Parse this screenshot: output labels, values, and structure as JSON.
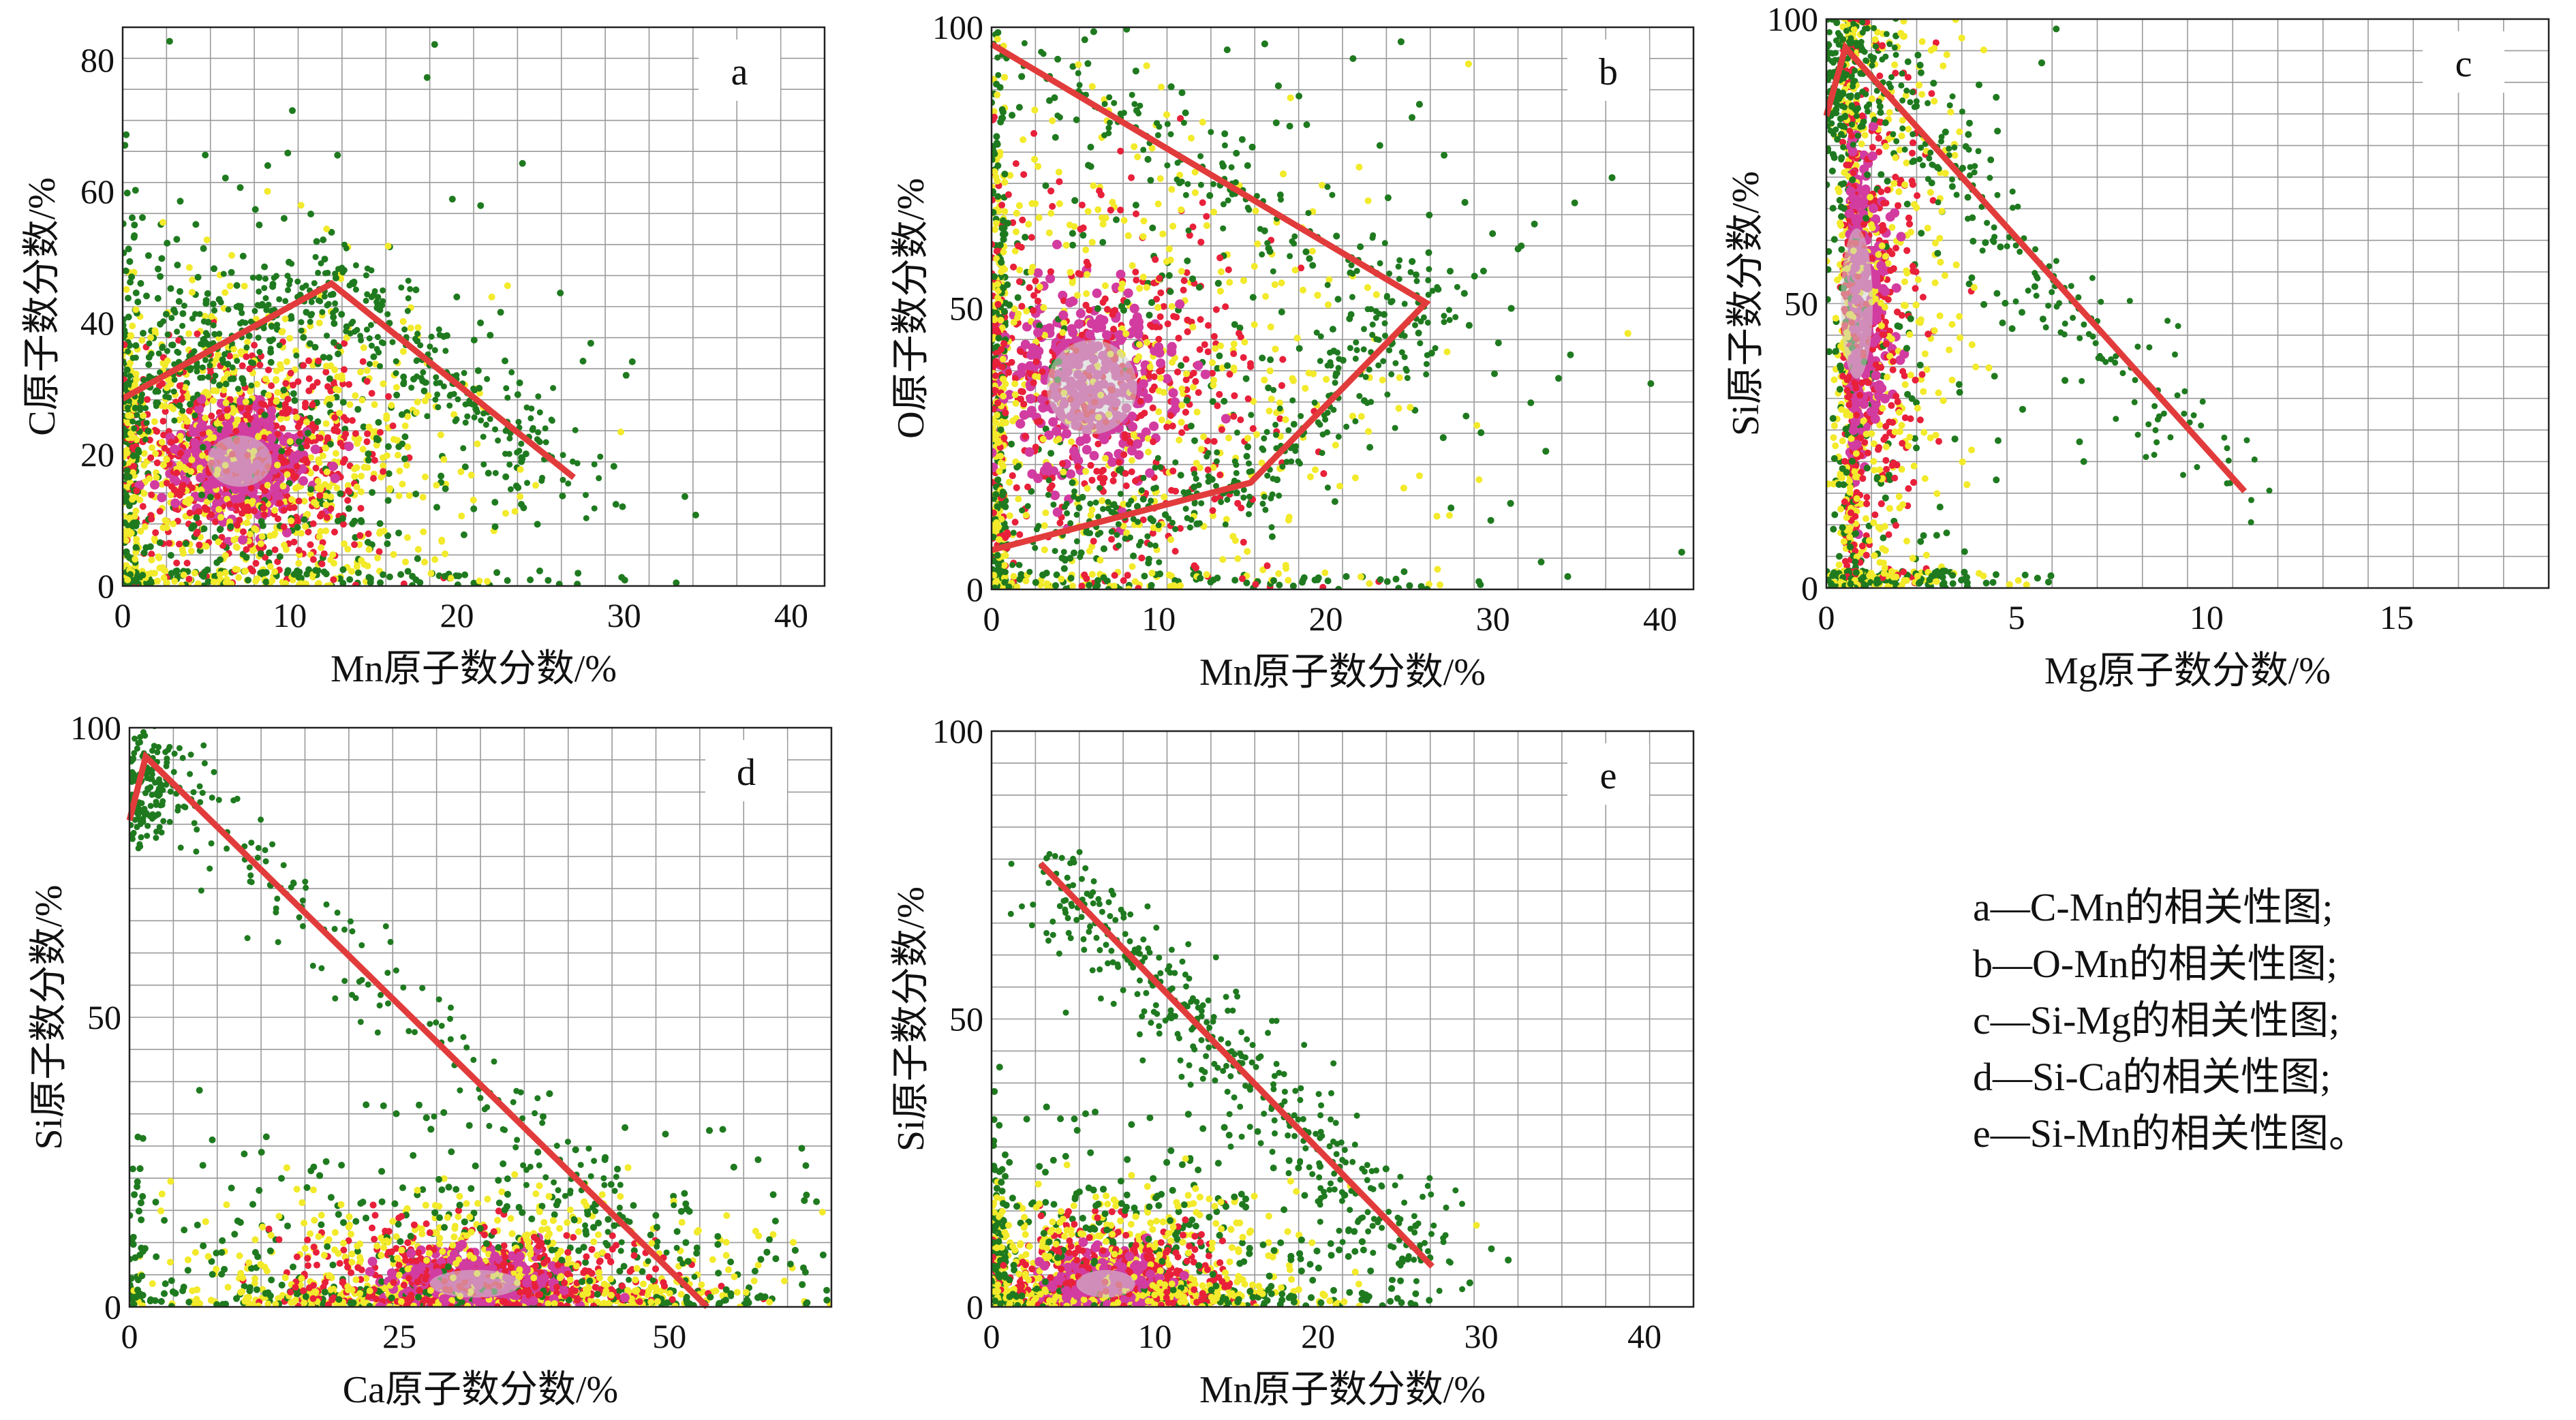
{
  "colors": {
    "boundary": "#e23b3b",
    "density_low": "#1f7a1f",
    "density_mid": "#f2ea2a",
    "density_high": "#e8203a",
    "density_peak": "#d23ca0",
    "density_core": "#cfcfcf",
    "grid": "#9a9a9a"
  },
  "chart_data": [
    {
      "id": "a",
      "type": "scatter",
      "panel_label": "a",
      "xlabel": "Mn原子数分数/%",
      "ylabel": "C原子数分数/%",
      "xlim": [
        0,
        42
      ],
      "ylim": [
        0,
        85
      ],
      "xticks": [
        0,
        10,
        20,
        30,
        40
      ],
      "yticks": [
        0,
        20,
        40,
        60,
        80
      ],
      "grid": true,
      "density_core": {
        "x": 7,
        "y": 19,
        "sx": 3.2,
        "sy": 6.5
      },
      "boundary": [
        [
          0,
          28.5
        ],
        [
          12.5,
          46
        ],
        [
          27,
          16.5
        ]
      ]
    },
    {
      "id": "b",
      "type": "scatter",
      "panel_label": "b",
      "xlabel": "Mn原子数分数/%",
      "ylabel": "O原子数分数/%",
      "xlim": [
        0,
        42
      ],
      "ylim": [
        0,
        100
      ],
      "xticks": [
        0,
        10,
        20,
        30,
        40
      ],
      "yticks": [
        0,
        50,
        100
      ],
      "grid": true,
      "density_core": {
        "x": 6,
        "y": 36,
        "sx": 4.5,
        "sy": 14
      },
      "boundary": [
        [
          0,
          97
        ],
        [
          26,
          51
        ],
        [
          15.5,
          19
        ],
        [
          0,
          7
        ]
      ]
    },
    {
      "id": "c",
      "type": "scatter",
      "panel_label": "c",
      "xlabel": "Mg原子数分数/%",
      "ylabel": "Si原子数分数/%",
      "xlim": [
        0,
        19
      ],
      "ylim": [
        0,
        100
      ],
      "xticks": [
        0,
        5,
        10,
        15
      ],
      "yticks": [
        0,
        50,
        100
      ],
      "grid": true,
      "density_core": {
        "x": 0.8,
        "y": 50,
        "sx": 0.7,
        "sy": 22
      },
      "boundary": [
        [
          0,
          83
        ],
        [
          0.5,
          95
        ],
        [
          11,
          17
        ]
      ]
    },
    {
      "id": "d",
      "type": "scatter",
      "panel_label": "d",
      "xlabel": "Ca原子数分数/%",
      "ylabel": "Si原子数分数/%",
      "xlim": [
        0,
        65
      ],
      "ylim": [
        0,
        100
      ],
      "xticks": [
        0,
        25,
        50
      ],
      "yticks": [
        0,
        50,
        100
      ],
      "grid": true,
      "density_core": {
        "x": 32,
        "y": 4,
        "sx": 7,
        "sy": 4
      },
      "boundary": [
        [
          0,
          84
        ],
        [
          1.5,
          95
        ],
        [
          53.5,
          0
        ]
      ]
    },
    {
      "id": "e",
      "type": "scatter",
      "panel_label": "e",
      "xlabel": "Mn原子数分数/%",
      "ylabel": "Si原子数分数/%",
      "xlim": [
        0,
        43
      ],
      "ylim": [
        0,
        100
      ],
      "xticks": [
        0,
        10,
        20,
        30,
        40
      ],
      "yticks": [
        0,
        50,
        100
      ],
      "grid": true,
      "density_core": {
        "x": 7,
        "y": 4,
        "sx": 3,
        "sy": 4
      },
      "boundary": [
        [
          3,
          77
        ],
        [
          27,
          7
        ]
      ]
    }
  ],
  "legend": [
    "a—C-Mn的相关性图;",
    "b—O-Mn的相关性图;",
    "c—Si-Mg的相关性图;",
    "d—Si-Ca的相关性图;",
    "e—Si-Mn的相关性图。"
  ]
}
